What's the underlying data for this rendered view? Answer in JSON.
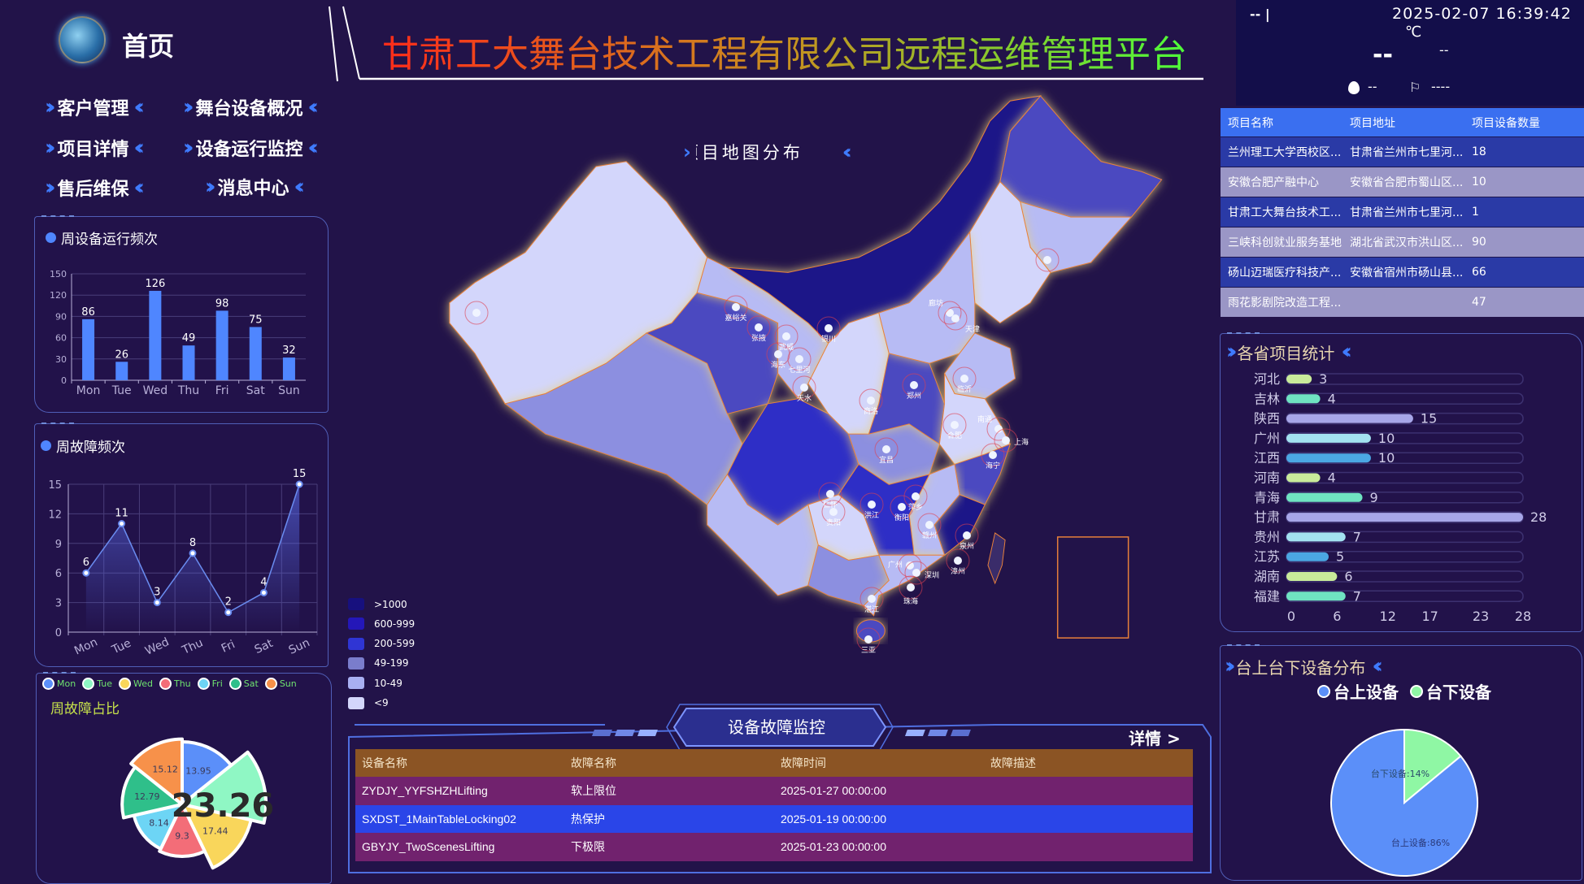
{
  "header": {
    "home_label": "首页",
    "title": "甘肃工大舞台技术工程有限公司远程运维管理平台",
    "title_gradient": [
      "#ff2a1a",
      "#c89020",
      "#4cff3a"
    ]
  },
  "nav": {
    "items": [
      {
        "label": "客户管理"
      },
      {
        "label": "舞台设备概况"
      },
      {
        "label": "项目详情"
      },
      {
        "label": "设备运行监控"
      },
      {
        "label": "售后维保"
      },
      {
        "label": "消息中心"
      }
    ]
  },
  "weather": {
    "location": "-- |",
    "datetime": "2025-02-07 16:39:42",
    "temp_unit": "℃",
    "temp": "--",
    "condition": "--",
    "humidity": "--",
    "wind": "----",
    "humidity_icon": "water-drop-icon",
    "wind_icon": "wind-flag-icon"
  },
  "projects_table": {
    "columns": [
      "项目名称",
      "项目地址",
      "项目设备数量"
    ],
    "rows": [
      [
        "兰州理工大学西校区...",
        "甘肃省兰州市七里河...",
        "18"
      ],
      [
        "安徽合肥产融中心",
        "安徽省合肥市蜀山区...",
        "10"
      ],
      [
        "甘肃工大舞台技术工...",
        "甘肃省兰州市七里河...",
        "1"
      ],
      [
        "三峡科创就业服务基地",
        "湖北省武汉市洪山区...",
        "90"
      ],
      [
        "砀山迈瑞医疗科技产...",
        "安徽省宿州市砀山县...",
        "66"
      ],
      [
        "雨花影剧院改造工程...",
        "",
        "47"
      ]
    ]
  },
  "map": {
    "title": "项目地图分布",
    "legend": [
      {
        "label": ">1000",
        "color": "#17107e"
      },
      {
        "label": "600-999",
        "color": "#2417b8"
      },
      {
        "label": "200-599",
        "color": "#2f35d4"
      },
      {
        "label": "49-199",
        "color": "#7a7dcc"
      },
      {
        "label": "10-49",
        "color": "#a9b0f2"
      },
      {
        "label": "<9",
        "color": "#d3d6fb"
      }
    ],
    "cities": [
      "嘉峪关",
      "张掖",
      "武威",
      "海东",
      "七里河",
      "天水",
      "银川",
      "商洛",
      "郑州",
      "廊坊",
      "天津",
      "临沂",
      "合肥",
      "南通",
      "上海",
      "海宁",
      "宜昌",
      "洪江",
      "衡阳",
      "萍乡",
      "仁怀",
      "贵阳",
      "赣州",
      "泉州",
      "漳州",
      "广州",
      "深圳",
      "珠海",
      "湛江",
      "三亚"
    ]
  },
  "fault_monitor": {
    "title": "设备故障监控",
    "details_label": "详情 >",
    "columns": [
      "设备名称",
      "故障名称",
      "故障时间",
      "故障描述"
    ],
    "rows": [
      [
        "ZYDJY_YYFSHZHLifting",
        "软上限位",
        "2025-01-27 00:00:00",
        ""
      ],
      [
        "SXDST_1MainTableLocking02",
        "热保护",
        "2025-01-19 00:00:00",
        ""
      ],
      [
        "GBYJY_TwoScenesLifting",
        "下极限",
        "2025-01-23 00:00:00",
        ""
      ]
    ]
  },
  "chart_data": [
    {
      "type": "bar",
      "title": "周设备运行频次",
      "categories": [
        "Mon",
        "Tue",
        "Wed",
        "Thu",
        "Fri",
        "Sat",
        "Sun"
      ],
      "values": [
        86,
        26,
        126,
        49,
        98,
        75,
        32
      ],
      "ylim": [
        0,
        150
      ],
      "yticks": [
        0,
        30,
        60,
        90,
        120,
        150
      ],
      "grid": true,
      "color": "#4f86ff"
    },
    {
      "type": "line",
      "title": "周故障频次",
      "categories": [
        "Mon",
        "Tue",
        "Wed",
        "Thu",
        "Fri",
        "Sat",
        "Sun"
      ],
      "values": [
        6,
        11,
        3,
        8,
        2,
        4,
        15
      ],
      "ylim": [
        0,
        15
      ],
      "yticks": [
        0,
        3,
        6,
        9,
        12,
        15
      ],
      "grid": true,
      "color": "#6a8cf0"
    },
    {
      "type": "pie",
      "title": "周故障占比",
      "rose": true,
      "categories": [
        "Mon",
        "Tue",
        "Wed",
        "Thu",
        "Fri",
        "Sat",
        "Sun"
      ],
      "values": [
        13.95,
        23.26,
        17.44,
        9.3,
        8.14,
        12.79,
        15.12
      ],
      "colors": [
        "#5b8ff9",
        "#8ff7c4",
        "#f9d65b",
        "#f36d78",
        "#6dd5f5",
        "#2fbf8a",
        "#f7914a"
      ],
      "center_label": "23.26",
      "legend": "top"
    },
    {
      "type": "bar",
      "orientation": "horizontal",
      "title": "各省项目统计",
      "categories": [
        "河北",
        "吉林",
        "陕西",
        "广州",
        "江西",
        "河南",
        "青海",
        "甘肃",
        "贵州",
        "江苏",
        "湖南",
        "福建"
      ],
      "values": [
        3,
        4,
        15,
        10,
        10,
        4,
        9,
        28,
        7,
        5,
        6,
        7
      ],
      "xticks": [
        0,
        6,
        12,
        17,
        23,
        28
      ],
      "xlim": [
        0,
        28
      ],
      "colors": [
        "#c9eb9a",
        "#6fe3c1",
        "#a7a6e8",
        "#a3e2f0",
        "#4ba7e3"
      ]
    },
    {
      "type": "pie",
      "title": "台上台下设备分布",
      "categories": [
        "台上设备",
        "台下设备"
      ],
      "values": [
        86,
        14
      ],
      "labels": [
        "台上设备:86%",
        "台下设备:14%"
      ],
      "colors": [
        "#5b8ff9",
        "#8ff7a4"
      ],
      "legend": "top"
    }
  ]
}
